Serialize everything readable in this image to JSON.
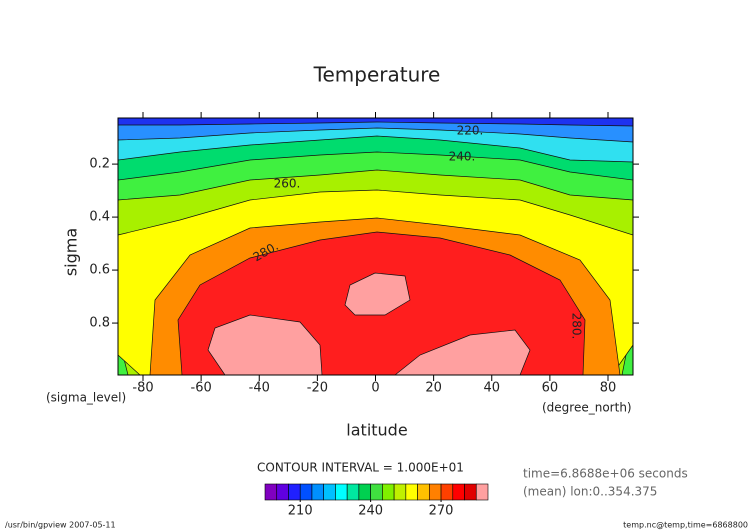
{
  "chart_data": {
    "type": "contour",
    "title": "Temperature",
    "xlabel": "latitude",
    "ylabel": "sigma",
    "xunit": "(degree_north)",
    "yunit": "(sigma_level)",
    "xlim": [
      -88.6,
      88.6
    ],
    "xticks": [
      -80,
      -60,
      -40,
      -20,
      0,
      20,
      40,
      60,
      80
    ],
    "ylim": [
      0.026,
      0.996
    ],
    "yaxis_inverted": true,
    "yticks": [
      0.2,
      0.4,
      0.6,
      0.8
    ],
    "fill_levels": [
      200,
      210,
      220,
      230,
      240,
      250,
      260,
      270,
      280,
      290
    ],
    "fill_colors": [
      "#1e32f0",
      "#2890ff",
      "#30e0f0",
      "#00dc6e",
      "#40f040",
      "#a8f000",
      "#ffff00",
      "#ff8c00",
      "#ff1e1e",
      "#ffa0a0"
    ],
    "contour_labels": [
      "220.",
      "240.",
      "260.",
      "280.",
      "280."
    ],
    "contour_interval": "CONTOUR INTERVAL = 1.000E+01",
    "info": [
      "time=6.8688e+06 seconds",
      "(mean) lon:0..354.375"
    ],
    "colorbar_boundaries": [
      195,
      200,
      205,
      210,
      215,
      220,
      225,
      230,
      235,
      240,
      245,
      250,
      255,
      260,
      265,
      270,
      275,
      280,
      285,
      290
    ],
    "colorbar_colors": [
      "#8000c0",
      "#6000e0",
      "#2020ff",
      "#0050ff",
      "#0090ff",
      "#00c0ff",
      "#00ffff",
      "#00e8a0",
      "#00d050",
      "#40e040",
      "#80f000",
      "#c0f000",
      "#ffff00",
      "#ffc000",
      "#ff8000",
      "#ff4000",
      "#ff0000",
      "#e00000",
      "#ffa0a0"
    ],
    "colorbar_ticks": [
      210,
      240,
      270
    ],
    "footer_left": "/usr/bin/gpview  2007-05-11",
    "footer_right": "temp.nc@temp,time=6868800"
  }
}
